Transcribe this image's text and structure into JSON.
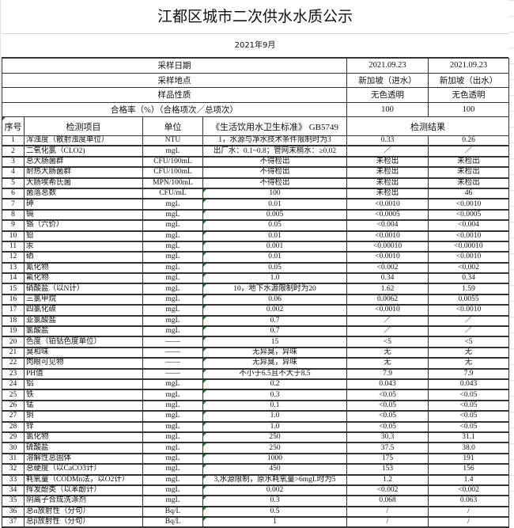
{
  "title": "江都区城市二次供水水质公示",
  "month": "2021年9月",
  "meta": [
    {
      "label": "采样日期",
      "in": "2021.09.23",
      "out": "2021.09.23"
    },
    {
      "label": "采样地点",
      "in": "新加坡（进水）",
      "out": "新加坡（出水）"
    },
    {
      "label": "样品性质",
      "in": "无色透明",
      "out": "无色透明"
    },
    {
      "label": "合格率（%）（合格项次／总项次）",
      "in": "100",
      "out": "100"
    }
  ],
  "header": {
    "no": "序号",
    "item": "检测项目",
    "unit": "单位",
    "standard": "《生活饮用水卫生标准》 GB5749",
    "result": "检测结果"
  },
  "rows": [
    {
      "no": "1",
      "item": "浑浊度（散射浊度单位）",
      "unit": "NTU",
      "std": "1，水源与净水技术条件限制时为3",
      "in": "0.33",
      "out": "0.26"
    },
    {
      "no": "2",
      "item": "二氧化氯（CLO2)",
      "unit": "mgL",
      "std": "出厂水：0.1~0.8；管网末梢水：≥0.02",
      "in": "／",
      "out": "／"
    },
    {
      "no": "3",
      "item": "总大肠菌群",
      "unit": "CFU/100mL",
      "std": "不得检出",
      "in": "未检出",
      "out": "未检出"
    },
    {
      "no": "4",
      "item": "耐热大肠菌群",
      "unit": "CFU/100mL",
      "std": "不得检出",
      "in": "未检出",
      "out": "未检出"
    },
    {
      "no": "5",
      "item": "大肠埃希氏菌",
      "unit": "MPN/100mL",
      "std": "不得检出",
      "in": "未检出",
      "out": "未检出"
    },
    {
      "no": "6",
      "item": "菌落总数",
      "unit": "CFU/mL",
      "std": "100",
      "in": "未检出",
      "out": "46"
    },
    {
      "no": "7",
      "item": "砷",
      "unit": "mgL",
      "std": "0.01",
      "in": "<0.0010",
      "out": "<0.0010"
    },
    {
      "no": "8",
      "item": "镉",
      "unit": "mgL",
      "std": "0.005",
      "in": "<0.0005",
      "out": "<0.0005"
    },
    {
      "no": "9",
      "item": "铬（六价）",
      "unit": "mgL",
      "std": "0.05",
      "in": "<0.004",
      "out": "<0.004"
    },
    {
      "no": "10",
      "item": "铅",
      "unit": "mgL",
      "std": "0.01",
      "in": "<0.0010",
      "out": "<0.0010"
    },
    {
      "no": "11",
      "item": "汞",
      "unit": "mgL",
      "std": "0.001",
      "in": "<0.00010",
      "out": "<0.00010"
    },
    {
      "no": "12",
      "item": "硒",
      "unit": "mgL",
      "std": "0.01",
      "in": "<0.0010",
      "out": "<0.0010"
    },
    {
      "no": "13",
      "item": "氰化物",
      "unit": "mgL",
      "std": "0.05",
      "in": "<0.002",
      "out": "<0.002"
    },
    {
      "no": "14",
      "item": "氟化物",
      "unit": "mgL",
      "std": "1.0",
      "in": "0.34",
      "out": "0.34"
    },
    {
      "no": "15",
      "item": "硝酸盐（以N计）",
      "unit": "mgL",
      "std": "10，地下水源限制时为20",
      "in": "1.62",
      "out": "1.59"
    },
    {
      "no": "16",
      "item": "三氯甲烷",
      "unit": "mgL",
      "std": "0.06",
      "in": "0.0062",
      "out": "0.0055"
    },
    {
      "no": "17",
      "item": "四氯化碳",
      "unit": "mgL",
      "std": "0.002",
      "in": "<0.0010",
      "out": "<0.0010"
    },
    {
      "no": "18",
      "item": "亚氯酸盐",
      "unit": "mgL",
      "std": "0.7",
      "in": "／",
      "out": "／"
    },
    {
      "no": "19",
      "item": "氯酸盐",
      "unit": "mgL",
      "std": "0.7",
      "in": "／",
      "out": "／"
    },
    {
      "no": "20",
      "item": "色度（铂钴色度单位）",
      "unit": "——",
      "std": "15",
      "in": "<5",
      "out": "<5"
    },
    {
      "no": "21",
      "item": "臭和味",
      "unit": "——",
      "std": "无异臭，异味",
      "in": "无",
      "out": "无"
    },
    {
      "no": "22",
      "item": "肉眼可见物",
      "unit": "——",
      "std": "无异臭，异味",
      "in": "无",
      "out": "无"
    },
    {
      "no": "23",
      "item": "PH值",
      "unit": "——",
      "std": "不小于6.5且不大于8.5",
      "in": "7.9",
      "out": "7.9"
    },
    {
      "no": "24",
      "item": "铝",
      "unit": "mgL",
      "std": "0.2",
      "in": "0.043",
      "out": "0.043"
    },
    {
      "no": "25",
      "item": "铁",
      "unit": "mgL",
      "std": "0.3",
      "in": "<0.05",
      "out": "<0.05"
    },
    {
      "no": "26",
      "item": "锰",
      "unit": "mgL",
      "std": "0.1",
      "in": "<0.05",
      "out": "<0.05"
    },
    {
      "no": "27",
      "item": "铜",
      "unit": "mgL",
      "std": "1.0",
      "in": "<0.05",
      "out": "<0.05"
    },
    {
      "no": "28",
      "item": "锌",
      "unit": "mgL",
      "std": "1.0",
      "in": "<0.05",
      "out": "<0.05"
    },
    {
      "no": "29",
      "item": "氯化物",
      "unit": "mgL",
      "std": "250",
      "in": "30.3",
      "out": "31.1"
    },
    {
      "no": "30",
      "item": "硫酸盐",
      "unit": "mgL",
      "std": "250",
      "in": "37.5",
      "out": "38.0"
    },
    {
      "no": "31",
      "item": "溶解性总固体",
      "unit": "mgL",
      "std": "1000",
      "in": "175",
      "out": "191"
    },
    {
      "no": "32",
      "item": "总硬度（以CaCO3计）",
      "unit": "mgL",
      "std": "450",
      "in": "153",
      "out": "156"
    },
    {
      "no": "33",
      "item": "耗氧量（CODMn法，以O2计）",
      "unit": "mgL",
      "std": "3,水源限制，原水耗氧量>6mgL时为5",
      "in": "1.2",
      "out": "1.4"
    },
    {
      "no": "34",
      "item": "挥发酚类（以苯酚计）",
      "unit": "mgL",
      "std": "0.002",
      "in": "<0.002",
      "out": "<0.002"
    },
    {
      "no": "35",
      "item": "阴离子合成洗涤剂",
      "unit": "mgL",
      "std": "0.3",
      "in": "0.068",
      "out": "0.063"
    },
    {
      "no": "36",
      "item": "总α放射性（分句）",
      "unit": "Bq/L",
      "std": "0.5",
      "in": "/",
      "out": "/"
    },
    {
      "no": "37",
      "item": "总β放射性（分句）",
      "unit": "Bq/L",
      "std": "1",
      "in": "/",
      "out": "/"
    }
  ]
}
